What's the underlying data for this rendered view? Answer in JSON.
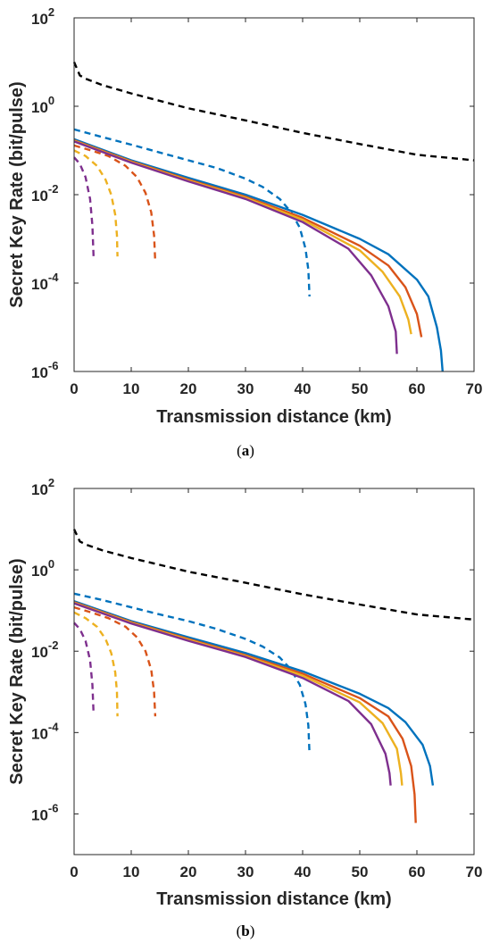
{
  "chart_data": [
    {
      "type": "line",
      "caption": "(a)",
      "caption_bold": "a",
      "xlabel": "Transmission distance (km)",
      "ylabel": "Secret Key Rate (bit/pulse)",
      "xlim": [
        0,
        70
      ],
      "ylim": [
        1e-06,
        100
      ],
      "yscale": "log",
      "xticks": [
        "0",
        "10",
        "20",
        "30",
        "40",
        "50",
        "60",
        "70"
      ],
      "yticks": [
        {
          "base": "10",
          "exp": "2",
          "value": 100
        },
        {
          "base": "10",
          "exp": "0",
          "value": 1
        },
        {
          "base": "10",
          "exp": "-2",
          "value": 0.01
        },
        {
          "base": "10",
          "exp": "-4",
          "value": 0.0001
        },
        {
          "base": "10",
          "exp": "-6",
          "value": 1e-06
        }
      ],
      "grid": false,
      "series": [
        {
          "color": "#000000",
          "style": "dashed",
          "points": [
            [
              0,
              10
            ],
            [
              1,
              5
            ],
            [
              2,
              4.2
            ],
            [
              5,
              3.0
            ],
            [
              10,
              1.95
            ],
            [
              20,
              0.9
            ],
            [
              30,
              0.48
            ],
            [
              40,
              0.25
            ],
            [
              50,
              0.14
            ],
            [
              60,
              0.08
            ],
            [
              70,
              0.06
            ]
          ]
        },
        {
          "color": "#0072BD",
          "style": "dashed",
          "points": [
            [
              0,
              0.3
            ],
            [
              5,
              0.2
            ],
            [
              10,
              0.135
            ],
            [
              15,
              0.09
            ],
            [
              20,
              0.06
            ],
            [
              25,
              0.04
            ],
            [
              30,
              0.023
            ],
            [
              33,
              0.015
            ],
            [
              36,
              0.008
            ],
            [
              38,
              0.004
            ],
            [
              39.5,
              0.0018
            ],
            [
              40.5,
              0.0006
            ],
            [
              41,
              0.0002
            ],
            [
              41.2,
              5e-05
            ]
          ]
        },
        {
          "color": "#D95319",
          "style": "dashed",
          "points": [
            [
              0,
              0.13
            ],
            [
              3,
              0.1
            ],
            [
              6,
              0.075
            ],
            [
              9,
              0.045
            ],
            [
              11,
              0.025
            ],
            [
              12.5,
              0.011
            ],
            [
              13.5,
              0.004
            ],
            [
              14,
              0.0012
            ],
            [
              14.2,
              0.0003
            ]
          ]
        },
        {
          "color": "#EDB120",
          "style": "dashed",
          "points": [
            [
              0,
              0.1
            ],
            [
              2,
              0.075
            ],
            [
              4,
              0.045
            ],
            [
              5.5,
              0.022
            ],
            [
              6.5,
              0.01
            ],
            [
              7.2,
              0.0035
            ],
            [
              7.5,
              0.0012
            ],
            [
              7.6,
              0.0004
            ]
          ]
        },
        {
          "color": "#7E2F8E",
          "style": "dashed",
          "points": [
            [
              0,
              0.07
            ],
            [
              1,
              0.05
            ],
            [
              2,
              0.025
            ],
            [
              2.8,
              0.008
            ],
            [
              3.2,
              0.002
            ],
            [
              3.4,
              0.0004
            ]
          ]
        },
        {
          "color": "#0072BD",
          "style": "solid",
          "points": [
            [
              0,
              0.18
            ],
            [
              10,
              0.06
            ],
            [
              20,
              0.024
            ],
            [
              30,
              0.01
            ],
            [
              40,
              0.0035
            ],
            [
              50,
              0.001
            ],
            [
              55,
              0.00045
            ],
            [
              60,
              0.00012
            ],
            [
              62,
              5e-05
            ],
            [
              63.5,
              1e-05
            ],
            [
              64.2,
              3e-06
            ],
            [
              64.5,
              1e-06
            ]
          ]
        },
        {
          "color": "#D95319",
          "style": "solid",
          "points": [
            [
              0,
              0.17
            ],
            [
              10,
              0.057
            ],
            [
              20,
              0.022
            ],
            [
              30,
              0.009
            ],
            [
              40,
              0.003
            ],
            [
              50,
              0.0007
            ],
            [
              55,
              0.00025
            ],
            [
              58,
              8e-05
            ],
            [
              60,
              2e-05
            ],
            [
              60.8,
              6e-06
            ]
          ]
        },
        {
          "color": "#EDB120",
          "style": "solid",
          "points": [
            [
              0,
              0.165
            ],
            [
              10,
              0.055
            ],
            [
              20,
              0.021
            ],
            [
              30,
              0.0085
            ],
            [
              40,
              0.0027
            ],
            [
              50,
              0.00055
            ],
            [
              54,
              0.00018
            ],
            [
              57,
              5e-05
            ],
            [
              58.5,
              1.5e-05
            ],
            [
              59,
              7e-06
            ]
          ]
        },
        {
          "color": "#7E2F8E",
          "style": "solid",
          "points": [
            [
              0,
              0.16
            ],
            [
              10,
              0.053
            ],
            [
              20,
              0.02
            ],
            [
              30,
              0.008
            ],
            [
              40,
              0.0024
            ],
            [
              48,
              0.0006
            ],
            [
              52,
              0.00015
            ],
            [
              55,
              3e-05
            ],
            [
              56.3,
              8e-06
            ],
            [
              56.5,
              2.5e-06
            ]
          ]
        }
      ]
    },
    {
      "type": "line",
      "caption": "(b)",
      "caption_bold": "b",
      "xlabel": "Transmission distance (km)",
      "ylabel": "Secret Key Rate (bit/pulse)",
      "xlim": [
        0,
        70
      ],
      "ylim": [
        1e-07,
        100
      ],
      "yscale": "log",
      "xticks": [
        "0",
        "10",
        "20",
        "30",
        "40",
        "50",
        "60",
        "70"
      ],
      "yticks": [
        {
          "base": "10",
          "exp": "2",
          "value": 100
        },
        {
          "base": "10",
          "exp": "0",
          "value": 1
        },
        {
          "base": "10",
          "exp": "-2",
          "value": 0.01
        },
        {
          "base": "10",
          "exp": "-4",
          "value": 0.0001
        },
        {
          "base": "10",
          "exp": "-6",
          "value": 1e-06
        }
      ],
      "grid": false,
      "series": [
        {
          "color": "#000000",
          "style": "dashed",
          "points": [
            [
              0,
              10
            ],
            [
              1,
              5
            ],
            [
              2,
              4.2
            ],
            [
              5,
              3.0
            ],
            [
              10,
              1.95
            ],
            [
              20,
              0.9
            ],
            [
              30,
              0.48
            ],
            [
              40,
              0.25
            ],
            [
              50,
              0.14
            ],
            [
              60,
              0.08
            ],
            [
              70,
              0.06
            ]
          ]
        },
        {
          "color": "#0072BD",
          "style": "dashed",
          "points": [
            [
              0,
              0.26
            ],
            [
              5,
              0.18
            ],
            [
              10,
              0.12
            ],
            [
              15,
              0.08
            ],
            [
              20,
              0.055
            ],
            [
              25,
              0.035
            ],
            [
              30,
              0.02
            ],
            [
              33,
              0.013
            ],
            [
              36,
              0.007
            ],
            [
              38,
              0.0035
            ],
            [
              39.5,
              0.0015
            ],
            [
              40.5,
              0.0005
            ],
            [
              41,
              0.00015
            ],
            [
              41.2,
              3e-05
            ]
          ]
        },
        {
          "color": "#D95319",
          "style": "dashed",
          "points": [
            [
              0,
              0.12
            ],
            [
              3,
              0.09
            ],
            [
              6,
              0.065
            ],
            [
              9,
              0.04
            ],
            [
              11,
              0.022
            ],
            [
              12.5,
              0.01
            ],
            [
              13.5,
              0.0035
            ],
            [
              14,
              0.001
            ],
            [
              14.2,
              0.00025
            ]
          ]
        },
        {
          "color": "#EDB120",
          "style": "dashed",
          "points": [
            [
              0,
              0.09
            ],
            [
              2,
              0.065
            ],
            [
              4,
              0.04
            ],
            [
              5.5,
              0.02
            ],
            [
              6.5,
              0.009
            ],
            [
              7.2,
              0.003
            ],
            [
              7.5,
              0.001
            ],
            [
              7.6,
              0.00025
            ]
          ]
        },
        {
          "color": "#7E2F8E",
          "style": "dashed",
          "points": [
            [
              0,
              0.05
            ],
            [
              1,
              0.035
            ],
            [
              2,
              0.018
            ],
            [
              2.8,
              0.006
            ],
            [
              3.2,
              0.0015
            ],
            [
              3.4,
              0.0003
            ]
          ]
        },
        {
          "color": "#0072BD",
          "style": "solid",
          "points": [
            [
              0,
              0.17
            ],
            [
              10,
              0.055
            ],
            [
              20,
              0.022
            ],
            [
              30,
              0.009
            ],
            [
              40,
              0.0032
            ],
            [
              50,
              0.0009
            ],
            [
              55,
              0.0004
            ],
            [
              58,
              0.00018
            ],
            [
              61,
              5e-05
            ],
            [
              62.3,
              1.5e-05
            ],
            [
              62.8,
              5e-06
            ]
          ]
        },
        {
          "color": "#D95319",
          "style": "solid",
          "points": [
            [
              0,
              0.16
            ],
            [
              10,
              0.052
            ],
            [
              20,
              0.02
            ],
            [
              30,
              0.008
            ],
            [
              40,
              0.0028
            ],
            [
              50,
              0.0007
            ],
            [
              55,
              0.00025
            ],
            [
              57.5,
              7e-05
            ],
            [
              59,
              1.5e-05
            ],
            [
              59.6,
              3e-06
            ],
            [
              59.8,
              6e-07
            ]
          ]
        },
        {
          "color": "#EDB120",
          "style": "solid",
          "points": [
            [
              0,
              0.155
            ],
            [
              10,
              0.05
            ],
            [
              20,
              0.019
            ],
            [
              30,
              0.0076
            ],
            [
              40,
              0.0025
            ],
            [
              50,
              0.00055
            ],
            [
              54,
              0.00017
            ],
            [
              56.5,
              4e-05
            ],
            [
              57.2,
              1e-05
            ],
            [
              57.4,
              5e-06
            ]
          ]
        },
        {
          "color": "#7E2F8E",
          "style": "solid",
          "points": [
            [
              0,
              0.15
            ],
            [
              10,
              0.048
            ],
            [
              20,
              0.018
            ],
            [
              30,
              0.0072
            ],
            [
              40,
              0.0022
            ],
            [
              48,
              0.0006
            ],
            [
              52,
              0.00016
            ],
            [
              54.5,
              3e-05
            ],
            [
              55.2,
              1e-05
            ],
            [
              55.4,
              5e-06
            ]
          ]
        }
      ]
    }
  ]
}
